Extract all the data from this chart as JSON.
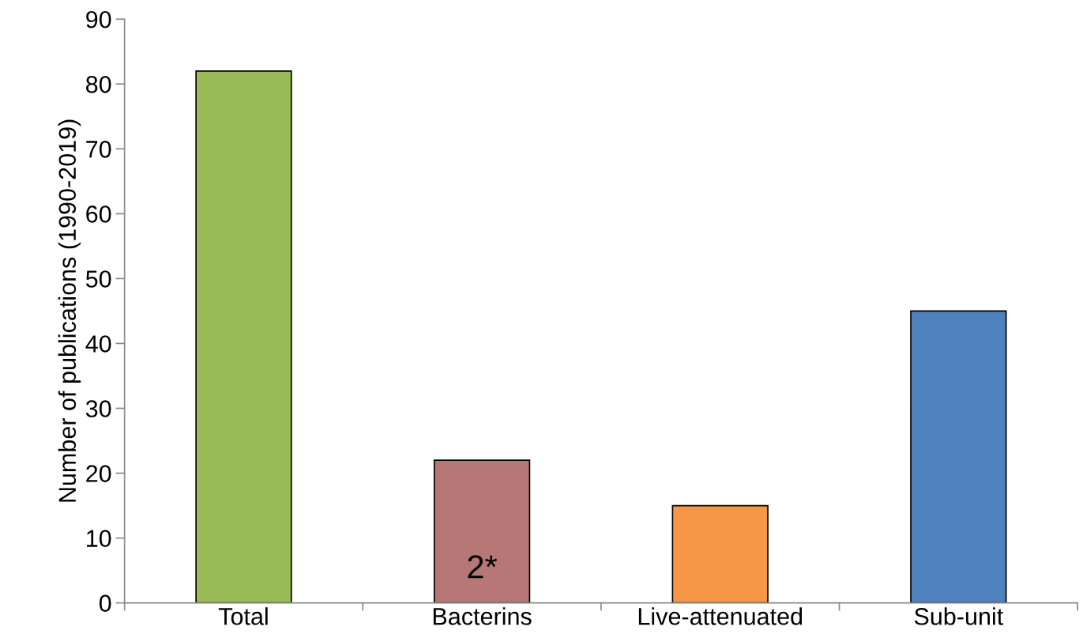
{
  "chart_data": {
    "type": "bar",
    "ylabel": "Number of publications (1990-2019)",
    "categories": [
      "Total",
      "Bacterins",
      "Live-attenuated",
      "Sub-unit"
    ],
    "values": [
      82,
      22,
      15,
      45
    ],
    "colors": [
      "#9bbb59",
      "#b77776",
      "#f79646",
      "#4f81bd"
    ],
    "ylim": [
      0,
      90
    ],
    "yticks": [
      0,
      10,
      20,
      30,
      40,
      50,
      60,
      70,
      80,
      90
    ],
    "annotations": [
      "2*"
    ],
    "grid": false
  }
}
